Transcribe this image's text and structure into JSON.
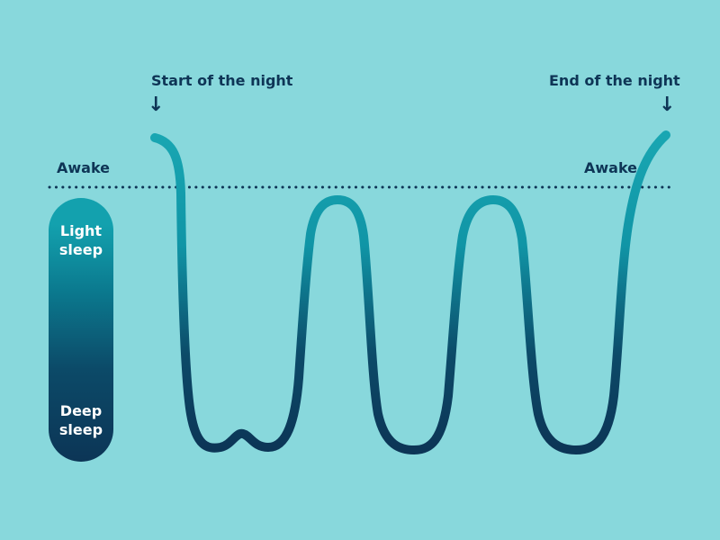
{
  "labels": {
    "start": "Start of the night",
    "end": "End of the night",
    "awake_left": "Awake",
    "awake_right": "Awake",
    "light_sleep": [
      "Light",
      "sleep"
    ],
    "deep_sleep": [
      "Deep",
      "sleep"
    ]
  },
  "icons": {
    "start_arrow": "arrow-down-icon",
    "end_arrow": "arrow-down-icon"
  },
  "colors": {
    "background": "#88d8dc",
    "text": "#0e3556",
    "light": "#13a1ae",
    "deep": "#0c3556"
  }
}
